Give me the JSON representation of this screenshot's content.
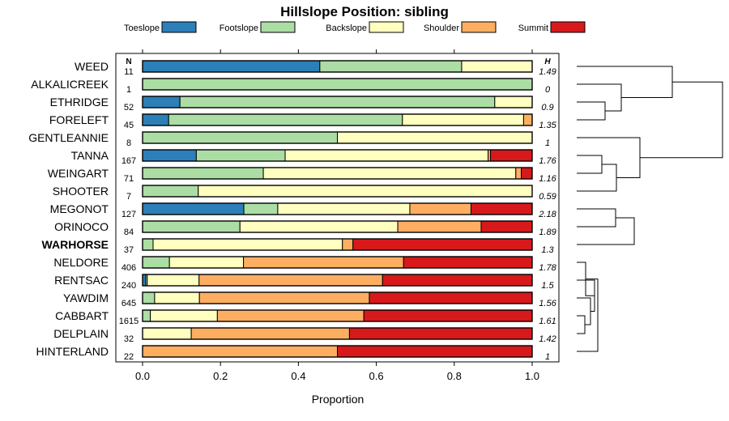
{
  "chart_data": {
    "type": "bar",
    "orientation": "horizontal",
    "stacked": true,
    "title": "Hillslope Position: sibling",
    "xlabel": "Proportion",
    "ylabel": "",
    "xlim": [
      0,
      1
    ],
    "x_ticks": [
      "0.0",
      "0.2",
      "0.4",
      "0.6",
      "0.8",
      "1.0"
    ],
    "n_header": "N",
    "h_header": "H",
    "legend_position": "top",
    "series": [
      {
        "name": "Toeslope",
        "color": "#2c7fb8"
      },
      {
        "name": "Footslope",
        "color": "#abdda4"
      },
      {
        "name": "Backslope",
        "color": "#ffffbf"
      },
      {
        "name": "Shoulder",
        "color": "#fdae61"
      },
      {
        "name": "Summit",
        "color": "#d7191c"
      }
    ],
    "rows": [
      {
        "label": "WEED",
        "n": "11",
        "h": "1.49",
        "bold": false,
        "values": [
          0.455,
          0.364,
          0.181,
          0,
          0
        ]
      },
      {
        "label": "ALKALICREEK",
        "n": "1",
        "h": "0",
        "bold": false,
        "values": [
          0,
          1,
          0,
          0,
          0
        ]
      },
      {
        "label": "ETHRIDGE",
        "n": "52",
        "h": "0.9",
        "bold": false,
        "values": [
          0.096,
          0.808,
          0.096,
          0,
          0
        ]
      },
      {
        "label": "FORELEFT",
        "n": "45",
        "h": "1.35",
        "bold": false,
        "values": [
          0.067,
          0.6,
          0.311,
          0.022,
          0
        ]
      },
      {
        "label": "GENTLEANNIE",
        "n": "8",
        "h": "1",
        "bold": false,
        "values": [
          0,
          0.5,
          0.5,
          0,
          0
        ]
      },
      {
        "label": "TANNA",
        "n": "167",
        "h": "1.76",
        "bold": false,
        "values": [
          0.138,
          0.228,
          0.521,
          0.006,
          0.107
        ]
      },
      {
        "label": "WEINGART",
        "n": "71",
        "h": "1.16",
        "bold": false,
        "values": [
          0,
          0.31,
          0.648,
          0.014,
          0.028
        ]
      },
      {
        "label": "SHOOTER",
        "n": "7",
        "h": "0.59",
        "bold": false,
        "values": [
          0,
          0.143,
          0.857,
          0,
          0
        ]
      },
      {
        "label": "MEGONOT",
        "n": "127",
        "h": "2.18",
        "bold": false,
        "values": [
          0.26,
          0.087,
          0.339,
          0.157,
          0.157
        ]
      },
      {
        "label": "ORINOCO",
        "n": "84",
        "h": "1.89",
        "bold": false,
        "values": [
          0,
          0.25,
          0.405,
          0.214,
          0.131
        ]
      },
      {
        "label": "WARHORSE",
        "n": "37",
        "h": "1.3",
        "bold": true,
        "values": [
          0,
          0.027,
          0.486,
          0.027,
          0.46
        ]
      },
      {
        "label": "NELDORE",
        "n": "406",
        "h": "1.78",
        "bold": false,
        "values": [
          0,
          0.069,
          0.19,
          0.411,
          0.33
        ]
      },
      {
        "label": "RENTSAC",
        "n": "240",
        "h": "1.5",
        "bold": false,
        "values": [
          0.008,
          0.004,
          0.133,
          0.471,
          0.384
        ]
      },
      {
        "label": "YAWDIM",
        "n": "645",
        "h": "1.56",
        "bold": false,
        "values": [
          0,
          0.031,
          0.115,
          0.436,
          0.418
        ]
      },
      {
        "label": "CABBART",
        "n": "1615",
        "h": "1.61",
        "bold": false,
        "values": [
          0,
          0.02,
          0.172,
          0.376,
          0.432
        ]
      },
      {
        "label": "DELPLAIN",
        "n": "32",
        "h": "1.42",
        "bold": false,
        "values": [
          0,
          0,
          0.125,
          0.406,
          0.469
        ]
      },
      {
        "label": "HINTERLAND",
        "n": "22",
        "h": "1",
        "bold": false,
        "values": [
          0,
          0,
          0,
          0.5,
          0.5
        ]
      }
    ]
  }
}
